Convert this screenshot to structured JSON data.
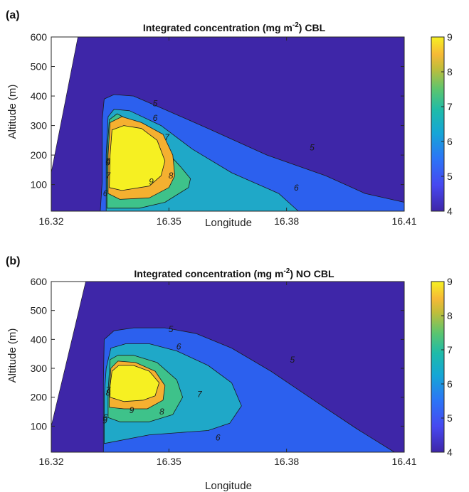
{
  "chart_data": [
    {
      "type": "contour",
      "panel_label": "(a)",
      "title_main": "Integrated concentration (mg m",
      "title_sup": "-2",
      "title_tail": ") CBL",
      "xlabel": "Longitude",
      "ylabel": "Altitude (m)",
      "xlim": [
        16.32,
        16.41
      ],
      "ylim": [
        10,
        600
      ],
      "xticks": [
        "16.32",
        "16.35",
        "16.38",
        "16.41"
      ],
      "yticks": [
        "100",
        "200",
        "300",
        "400",
        "500",
        "600"
      ],
      "colorbar_ticks": [
        "4",
        "5",
        "6",
        "7",
        "8",
        "9"
      ],
      "colorbar_range": [
        4,
        9
      ],
      "levels": [
        {
          "value": 4,
          "color": "#3e26a8",
          "polygon": [
            [
              16.32,
              10
            ],
            [
              16.41,
              10
            ],
            [
              16.41,
              600
            ],
            [
              16.3268,
              600
            ],
            [
              16.32,
              140
            ]
          ]
        },
        {
          "value": 5,
          "color": "#2c60ee",
          "polygon": [
            [
              16.3325,
              10
            ],
            [
              16.41,
              10
            ],
            [
              16.41,
              40
            ],
            [
              16.4,
              70
            ],
            [
              16.39,
              130
            ],
            [
              16.375,
              200
            ],
            [
              16.36,
              290
            ],
            [
              16.348,
              360
            ],
            [
              16.341,
              400
            ],
            [
              16.336,
              405
            ],
            [
              16.3335,
              390
            ],
            [
              16.333,
              320
            ],
            [
              16.333,
              200
            ],
            [
              16.333,
              110
            ],
            [
              16.3325,
              10
            ]
          ]
        },
        {
          "value": 6,
          "color": "#1fa8c8",
          "polygon": [
            [
              16.334,
              10
            ],
            [
              16.383,
              10
            ],
            [
              16.378,
              70
            ],
            [
              16.366,
              140
            ],
            [
              16.356,
              220
            ],
            [
              16.348,
              300
            ],
            [
              16.34,
              350
            ],
            [
              16.336,
              355
            ],
            [
              16.3345,
              330
            ],
            [
              16.334,
              200
            ],
            [
              16.334,
              10
            ]
          ]
        },
        {
          "value": 7,
          "color": "#3ec28a",
          "polygon": [
            [
              16.3342,
              20
            ],
            [
              16.3425,
              20
            ],
            [
              16.349,
              40
            ],
            [
              16.355,
              90
            ],
            [
              16.3555,
              120
            ],
            [
              16.353,
              160
            ],
            [
              16.3495,
              210
            ],
            [
              16.345,
              270
            ],
            [
              16.341,
              310
            ],
            [
              16.3368,
              340
            ],
            [
              16.3348,
              320
            ],
            [
              16.3342,
              200
            ],
            [
              16.3342,
              20
            ]
          ]
        },
        {
          "value": 8,
          "color": "#f5b030",
          "polygon": [
            [
              16.3345,
              70
            ],
            [
              16.3375,
              50
            ],
            [
              16.345,
              55
            ],
            [
              16.35,
              90
            ],
            [
              16.3515,
              130
            ],
            [
              16.351,
              200
            ],
            [
              16.3485,
              270
            ],
            [
              16.343,
              310
            ],
            [
              16.338,
              330
            ],
            [
              16.335,
              310
            ],
            [
              16.3345,
              200
            ],
            [
              16.3345,
              70
            ]
          ]
        },
        {
          "value": 9,
          "color": "#f6f022",
          "polygon": [
            [
              16.3348,
              90
            ],
            [
              16.338,
              80
            ],
            [
              16.345,
              95
            ],
            [
              16.348,
              130
            ],
            [
              16.349,
              180
            ],
            [
              16.347,
              250
            ],
            [
              16.343,
              290
            ],
            [
              16.3385,
              300
            ],
            [
              16.3355,
              285
            ],
            [
              16.335,
              200
            ],
            [
              16.3348,
              90
            ]
          ]
        }
      ],
      "contour_labels": [
        {
          "text": "5",
          "x": 16.3465,
          "y": 375
        },
        {
          "text": "5",
          "x": 16.3865,
          "y": 225
        },
        {
          "text": "6",
          "x": 16.3465,
          "y": 325
        },
        {
          "text": "6",
          "x": 16.3825,
          "y": 90
        },
        {
          "text": "6",
          "x": 16.3338,
          "y": 70
        },
        {
          "text": "7",
          "x": 16.3495,
          "y": 260
        },
        {
          "text": "7",
          "x": 16.3345,
          "y": 130
        },
        {
          "text": "8",
          "x": 16.3505,
          "y": 130
        },
        {
          "text": "8",
          "x": 16.3345,
          "y": 180
        },
        {
          "text": "9",
          "x": 16.3455,
          "y": 110
        },
        {
          "text": "9",
          "x": 16.3345,
          "y": 175
        }
      ]
    },
    {
      "type": "contour",
      "panel_label": "(b)",
      "title_main": "Integrated concentration (mg m",
      "title_sup": "-2",
      "title_tail": ") NO CBL",
      "xlabel": "Longitude",
      "ylabel": "Altitude (m)",
      "xlim": [
        16.32,
        16.41
      ],
      "ylim": [
        10,
        600
      ],
      "xticks": [
        "16.32",
        "16.35",
        "16.38",
        "16.41"
      ],
      "yticks": [
        "100",
        "200",
        "300",
        "400",
        "500",
        "600"
      ],
      "colorbar_ticks": [
        "4",
        "5",
        "6",
        "7",
        "8",
        "9"
      ],
      "colorbar_range": [
        4,
        9
      ],
      "levels": [
        {
          "value": 4,
          "color": "#3e26a8",
          "polygon": [
            [
              16.32,
              10
            ],
            [
              16.41,
              10
            ],
            [
              16.41,
              600
            ],
            [
              16.3288,
              600
            ],
            [
              16.32,
              100
            ]
          ]
        },
        {
          "value": 5,
          "color": "#2c60ee",
          "polygon": [
            [
              16.3333,
              10
            ],
            [
              16.4075,
              10
            ],
            [
              16.398,
              90
            ],
            [
              16.388,
              180
            ],
            [
              16.376,
              290
            ],
            [
              16.366,
              370
            ],
            [
              16.357,
              420
            ],
            [
              16.349,
              440
            ],
            [
              16.341,
              440
            ],
            [
              16.336,
              430
            ],
            [
              16.3335,
              400
            ],
            [
              16.3333,
              250
            ],
            [
              16.3333,
              10
            ]
          ]
        },
        {
          "value": 6,
          "color": "#1fa8c8",
          "polygon": [
            [
              16.3335,
              40
            ],
            [
              16.345,
              70
            ],
            [
              16.355,
              80
            ],
            [
              16.36,
              85
            ],
            [
              16.3655,
              110
            ],
            [
              16.3685,
              170
            ],
            [
              16.366,
              250
            ],
            [
              16.36,
              310
            ],
            [
              16.352,
              360
            ],
            [
              16.345,
              385
            ],
            [
              16.339,
              385
            ],
            [
              16.3352,
              370
            ],
            [
              16.334,
              300
            ],
            [
              16.3335,
              200
            ],
            [
              16.3335,
              40
            ]
          ]
        },
        {
          "value": 7,
          "color": "#3ec28a",
          "polygon": [
            [
              16.3345,
              130
            ],
            [
              16.3375,
              115
            ],
            [
              16.345,
              115
            ],
            [
              16.351,
              140
            ],
            [
              16.3535,
              200
            ],
            [
              16.352,
              260
            ],
            [
              16.347,
              320
            ],
            [
              16.341,
              345
            ],
            [
              16.337,
              345
            ],
            [
              16.335,
              330
            ],
            [
              16.3345,
              220
            ],
            [
              16.3345,
              130
            ]
          ]
        },
        {
          "value": 8,
          "color": "#f5b030",
          "polygon": [
            [
              16.3348,
              165
            ],
            [
              16.3385,
              160
            ],
            [
              16.3445,
              160
            ],
            [
              16.3485,
              190
            ],
            [
              16.349,
              240
            ],
            [
              16.3465,
              290
            ],
            [
              16.3415,
              320
            ],
            [
              16.337,
              325
            ],
            [
              16.3352,
              300
            ],
            [
              16.3348,
              220
            ],
            [
              16.3348,
              165
            ]
          ]
        },
        {
          "value": 9,
          "color": "#f6f022",
          "polygon": [
            [
              16.335,
              200
            ],
            [
              16.3385,
              185
            ],
            [
              16.3435,
              190
            ],
            [
              16.3465,
              205
            ],
            [
              16.3475,
              250
            ],
            [
              16.345,
              290
            ],
            [
              16.341,
              310
            ],
            [
              16.3372,
              310
            ],
            [
              16.3355,
              290
            ],
            [
              16.335,
              240
            ],
            [
              16.335,
              200
            ]
          ]
        }
      ],
      "contour_labels": [
        {
          "text": "5",
          "x": 16.3505,
          "y": 435
        },
        {
          "text": "5",
          "x": 16.3815,
          "y": 330
        },
        {
          "text": "6",
          "x": 16.3525,
          "y": 375
        },
        {
          "text": "6",
          "x": 16.3625,
          "y": 60
        },
        {
          "text": "6",
          "x": 16.3338,
          "y": 130
        },
        {
          "text": "7",
          "x": 16.3578,
          "y": 210
        },
        {
          "text": "7",
          "x": 16.3345,
          "y": 225
        },
        {
          "text": "8",
          "x": 16.3482,
          "y": 150
        },
        {
          "text": "8",
          "x": 16.3345,
          "y": 215
        },
        {
          "text": "9",
          "x": 16.3405,
          "y": 155
        },
        {
          "text": "9",
          "x": 16.3337,
          "y": 120
        }
      ]
    }
  ]
}
